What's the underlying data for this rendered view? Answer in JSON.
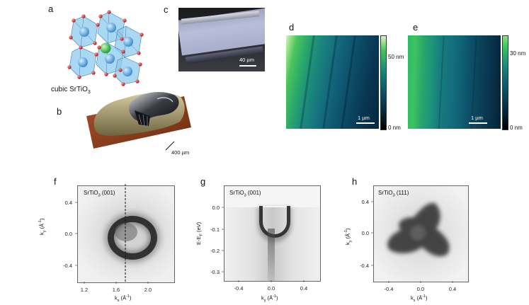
{
  "panels": {
    "a": {
      "letter": "a",
      "caption": "cubic SrTiO",
      "caption_sub": "3"
    },
    "b": {
      "letter": "b",
      "scale": "400 µm"
    },
    "c": {
      "letter": "c",
      "scale": "40 µm"
    },
    "d": {
      "letter": "d",
      "scale": "1 µm",
      "cbar_top": "50 nm",
      "cbar_bottom": "0 nm"
    },
    "e": {
      "letter": "e",
      "scale": "1 µm",
      "cbar_top": "30 nm",
      "cbar_bottom": "0 nm"
    },
    "f": {
      "letter": "f",
      "label_main": "SrTiO",
      "label_sub": "3",
      "label_tail": " (001)",
      "xlabel": "k",
      "xlabel_sub": "x",
      "xlabel_unit": " (Å",
      "xlabel_sup": "-1",
      "xlabel_close": ")",
      "ylabel": "k",
      "ylabel_sub": "y",
      "ylabel_unit": " (Å",
      "ylabel_sup": "-1",
      "ylabel_close": ")",
      "xticks": [
        "1.2",
        "1.6",
        "2.0"
      ],
      "yticks": [
        "0.4",
        "0.0",
        "-0.4"
      ]
    },
    "g": {
      "letter": "g",
      "label_main": "SrTiO",
      "label_sub": "3",
      "label_tail": " (001)",
      "xlabel": "k",
      "xlabel_sub": "y",
      "xlabel_unit": " (Å",
      "xlabel_sup": "-1",
      "xlabel_close": ")",
      "ylabel": "E-E",
      "ylabel_sub": "F",
      "ylabel_unit": " (eV)",
      "xticks": [
        "-0.4",
        "0.0",
        "0.4"
      ],
      "yticks": [
        "0.0",
        "-0.1",
        "-0.2",
        "-0.3"
      ]
    },
    "h": {
      "letter": "h",
      "label_main": "SrTiO",
      "label_sub": "3",
      "label_tail": " (111)",
      "xlabel": "k",
      "xlabel_sub": "x",
      "xlabel_unit": " (Å",
      "xlabel_sup": "-1",
      "xlabel_close": ")",
      "ylabel": "k",
      "ylabel_sub": "y",
      "ylabel_unit": " (Å",
      "ylabel_sup": "-1",
      "ylabel_close": ")",
      "xticks": [
        "-0.4",
        "0.0",
        "0.4"
      ],
      "yticks": [
        "0.4",
        "0.0",
        "-0.4"
      ]
    }
  }
}
